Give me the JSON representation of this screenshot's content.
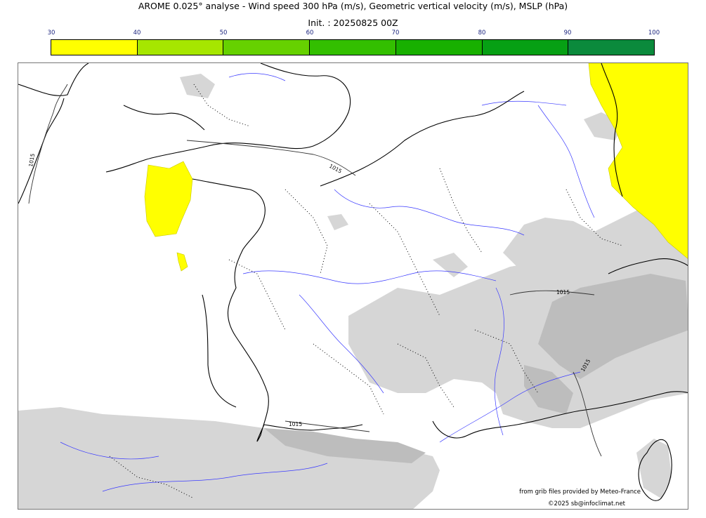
{
  "header": {
    "title": "AROME 0.025° analyse - Wind speed 300 hPa (m/s), Geometric vertical velocity (m/s), MSLP (hPa)",
    "init": "Init. : 20250825 00Z"
  },
  "colorbar": {
    "ticks": [
      "30",
      "40",
      "50",
      "60",
      "70",
      "80",
      "90",
      "100"
    ],
    "colors": [
      "#ffff00",
      "#a6e600",
      "#66d100",
      "#33bf00",
      "#18b000",
      "#06a014",
      "#0b8a3c",
      "#067a50"
    ]
  },
  "map": {
    "isobar_labels": [
      "1015",
      "1015",
      "1015",
      "1015",
      "1015"
    ],
    "colors": {
      "jet": "#ffff00",
      "coast": "#000000",
      "river": "#3b3bff",
      "relief": "#d3d3d3",
      "relief_dark": "#bdbdbd"
    }
  },
  "footer": {
    "credit_source": "from grib files provided by Meteo-France",
    "credit_copyright": "©2025 sb@infoclimat.net"
  }
}
